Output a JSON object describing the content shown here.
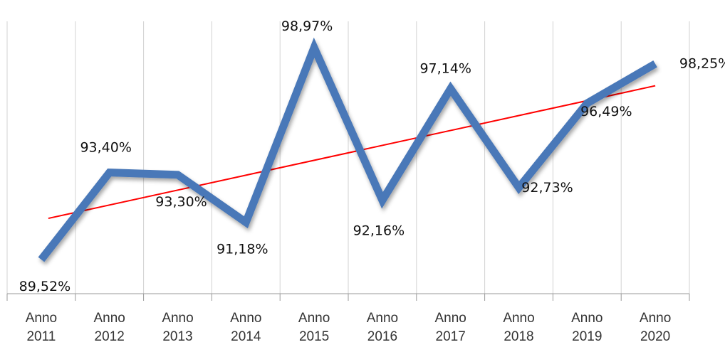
{
  "chart_data": {
    "type": "line",
    "title": "",
    "xlabel": "",
    "ylabel": "",
    "categories": [
      [
        "Anno",
        "2011"
      ],
      [
        "Anno",
        "2012"
      ],
      [
        "Anno",
        "2013"
      ],
      [
        "Anno",
        "2014"
      ],
      [
        "Anno",
        "2015"
      ],
      [
        "Anno",
        "2016"
      ],
      [
        "Anno",
        "2017"
      ],
      [
        "Anno",
        "2018"
      ],
      [
        "Anno",
        "2019"
      ],
      [
        "Anno",
        "2020"
      ]
    ],
    "values": [
      89.52,
      93.4,
      93.3,
      91.18,
      98.97,
      92.16,
      97.14,
      92.73,
      96.49,
      98.25
    ],
    "data_labels": [
      "89,52%",
      "93,40%",
      "93,30%",
      "91,18%",
      "98,97%",
      "92,16%",
      "97,14%",
      "92,73%",
      "96,49%",
      "98,25%"
    ],
    "ylim": [
      88,
      100
    ],
    "grid": "vertical",
    "legend": "none",
    "trendline": {
      "type": "linear",
      "color": "#ff0000"
    },
    "colors": {
      "series": "#4a78b8",
      "trendline": "#ff0000",
      "grid": "#d2d2d2"
    }
  }
}
